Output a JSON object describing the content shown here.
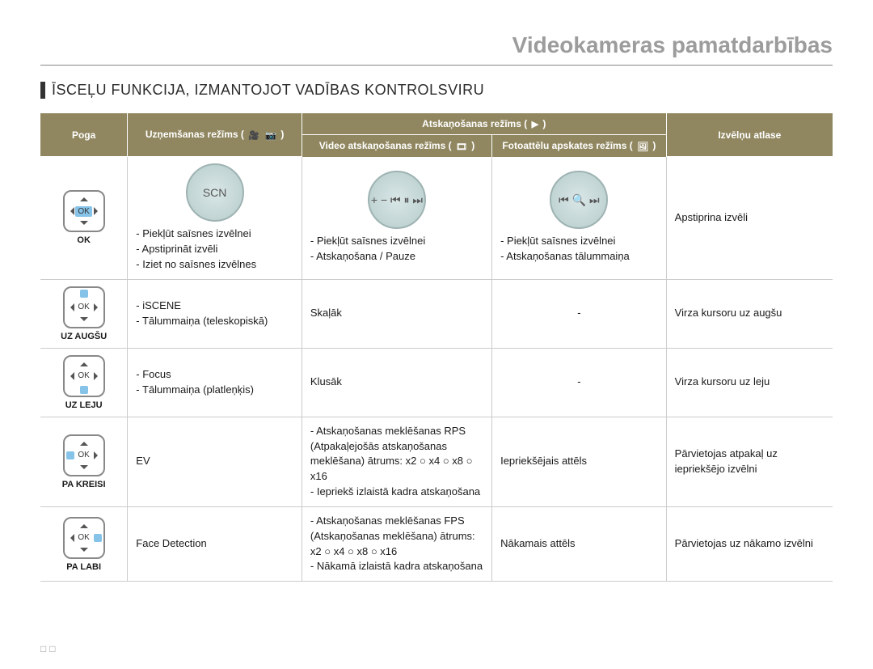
{
  "page": {
    "title": "Videokameras pamatdarbības",
    "section_title": "ĪSCEĻU FUNKCIJA, IZMANTOJOT VADĪBAS KONTROLSVIRU",
    "footer_page": "□□"
  },
  "columns": {
    "poga": "Poga",
    "record": "Uzņemšanas režīms (",
    "record_icon1": "🎥",
    "record_icon2": "📷",
    "record_close": ")",
    "play_header": "Atskaņošanas režīms (",
    "play_header_icon": "▶",
    "play_header_close": ")",
    "video_play": "Video atskaņošanas režīms (",
    "video_play_icon": "🎞",
    "video_play_close": ")",
    "photo_view": "Fotoattēlu apskates režīms (",
    "photo_view_icon": "🖼",
    "photo_view_close": ")",
    "menu_sel": "Izvēlņu atlase"
  },
  "rows": [
    {
      "key": "ok",
      "btn_label": "OK",
      "highlight": "center",
      "dial_rec": "SCN",
      "dial_vid": "+ − ⏮ ⏸ ⏭",
      "dial_photo": "⏮ 🔍 ⏭",
      "record": "- Piekļūt saīsnes izvēlnei\n- Apstiprināt izvēli\n- Iziet no saīsnes izvēlnes",
      "video": "- Piekļūt saīsnes izvēlnei\n- Atskaņošana / Pauze",
      "photo": "- Piekļūt saīsnes izvēlnei\n- Atskaņošanas tālummaiņa",
      "menu": "Apstiprina izvēli"
    },
    {
      "key": "up",
      "btn_label": "UZ AUGŠU",
      "highlight": "up",
      "record": "- iSCENE\n- Tālummaiņa (teleskopiskā)",
      "video": "Skaļāk",
      "photo": "-",
      "menu": "Virza kursoru uz augšu"
    },
    {
      "key": "down",
      "btn_label": "UZ LEJU",
      "highlight": "down",
      "record": "- Focus\n- Tālummaiņa (platleņķis)",
      "video": "Klusāk",
      "photo": "-",
      "menu": "Virza kursoru uz leju"
    },
    {
      "key": "left",
      "btn_label": "PA KREISI",
      "highlight": "left",
      "record": "EV",
      "video": "- Atskaņošanas meklēšanas RPS (Atpakaļejošās atskaņošanas meklēšana) ātrums: x2 ○ x4 ○ x8 ○ x16\n- Iepriekš izlaistā kadra atskaņošana",
      "photo": "Iepriekšējais attēls",
      "menu": "Pārvietojas atpakaļ uz iepriekšējo izvēlni"
    },
    {
      "key": "right",
      "btn_label": "PA LABI",
      "highlight": "right",
      "record": "Face Detection",
      "video": "- Atskaņošanas meklēšanas FPS (Atskaņošanas meklēšana) ātrums: x2 ○ x4 ○ x8 ○ x16\n- Nākamā izlaistā kadra atskaņošana",
      "photo": "Nākamais attēls",
      "menu": "Pārvietojas uz nākamo izvēlni"
    }
  ],
  "colwidths": {
    "poga": "11%",
    "record": "22%",
    "video": "24%",
    "photo": "22%",
    "menu": "21%"
  },
  "colors": {
    "header_bg": "#908760",
    "dial_bg": "#c1d4d4",
    "highlight": "#86c3e8",
    "border": "#cccccc",
    "title_gray": "#9c9c9c"
  }
}
